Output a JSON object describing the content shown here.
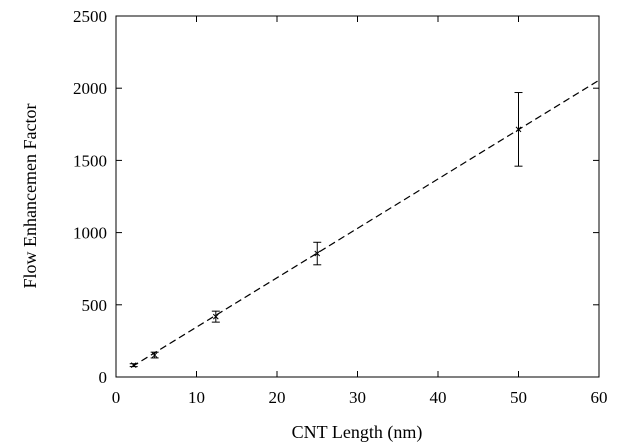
{
  "chart_data": {
    "type": "scatter",
    "title": "",
    "xlabel": "CNT Length (nm)",
    "ylabel": "Flow Enhancemen Factor",
    "xlim": [
      0,
      60
    ],
    "ylim": [
      0,
      2500
    ],
    "xticks": [
      0,
      10,
      20,
      30,
      40,
      50,
      60
    ],
    "yticks": [
      0,
      500,
      1000,
      1500,
      2000,
      2500
    ],
    "grid": false,
    "legend": "none",
    "series": [
      {
        "points": [
          {
            "x": 2.2,
            "y": 82,
            "err": 10
          },
          {
            "x": 4.8,
            "y": 152,
            "err": 20
          },
          {
            "x": 12.4,
            "y": 418,
            "err": 38
          },
          {
            "x": 25.0,
            "y": 855,
            "err": 78
          },
          {
            "x": 50.0,
            "y": 1715,
            "err": 255
          }
        ],
        "color": "#000000",
        "marker": "x"
      }
    ],
    "fit_line": {
      "x": [
        2.0,
        60.0
      ],
      "y": [
        72,
        2055
      ],
      "style": "dashed",
      "color": "#000000"
    }
  }
}
